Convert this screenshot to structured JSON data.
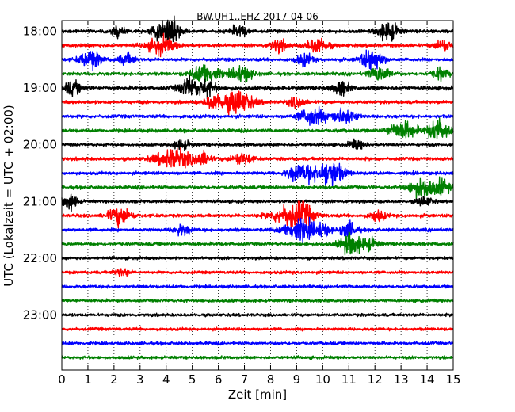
{
  "chart_data": {
    "type": "line",
    "subtype": "dayplot",
    "title": "BW.UH1..EHZ 2017-04-06",
    "xlabel": "Zeit  [min]",
    "ylabel": "UTC (Lokalzeit = UTC + 02:00)",
    "xlim": [
      0,
      15
    ],
    "x_ticks": [
      0,
      1,
      2,
      3,
      4,
      5,
      6,
      7,
      8,
      9,
      10,
      11,
      12,
      13,
      14,
      15
    ],
    "x_tick_labels": [
      "0",
      "1",
      "2",
      "3",
      "4",
      "5",
      "6",
      "7",
      "8",
      "9",
      "10",
      "11",
      "12",
      "13",
      "14",
      "15"
    ],
    "y_tick_labels": [
      "18:00",
      "19:00",
      "20:00",
      "21:00",
      "22:00",
      "23:00"
    ],
    "rows_per_hour": 4,
    "grid": "vertical dotted",
    "trace_colors": [
      "#000000",
      "#ff0000",
      "#0000ff",
      "#008000"
    ],
    "rows": [
      {
        "start": "18:00",
        "color_index": 0,
        "noise": 0.55,
        "events": [
          [
            3.9,
            0.4,
            3.5
          ],
          [
            4.3,
            0.3,
            2.5
          ],
          [
            12.5,
            0.4,
            3.2
          ],
          [
            6.8,
            0.3,
            2.0
          ],
          [
            2.1,
            0.3,
            1.6
          ]
        ]
      },
      {
        "start": "18:15",
        "color_index": 1,
        "noise": 0.55,
        "events": [
          [
            3.8,
            0.5,
            2.8
          ],
          [
            8.3,
            0.3,
            2.0
          ],
          [
            9.8,
            0.4,
            2.6
          ],
          [
            14.6,
            0.3,
            1.8
          ]
        ]
      },
      {
        "start": "18:30",
        "color_index": 2,
        "noise": 0.55,
        "events": [
          [
            1.1,
            0.4,
            3.0
          ],
          [
            11.9,
            0.4,
            3.8
          ],
          [
            9.3,
            0.3,
            2.0
          ],
          [
            2.5,
            0.3,
            1.8
          ]
        ]
      },
      {
        "start": "18:45",
        "color_index": 3,
        "noise": 0.55,
        "events": [
          [
            5.5,
            0.5,
            3.4
          ],
          [
            6.9,
            0.4,
            2.6
          ],
          [
            12.2,
            0.4,
            2.4
          ],
          [
            14.5,
            0.3,
            2.0
          ]
        ]
      },
      {
        "start": "19:00",
        "color_index": 0,
        "noise": 0.6,
        "events": [
          [
            4.9,
            0.4,
            3.2
          ],
          [
            5.6,
            0.3,
            2.6
          ],
          [
            0.4,
            0.3,
            2.2
          ],
          [
            10.7,
            0.3,
            2.4
          ]
        ]
      },
      {
        "start": "19:15",
        "color_index": 1,
        "noise": 0.55,
        "events": [
          [
            6.7,
            0.6,
            3.8
          ],
          [
            5.8,
            0.3,
            2.2
          ],
          [
            9.0,
            0.3,
            1.8
          ]
        ]
      },
      {
        "start": "19:30",
        "color_index": 2,
        "noise": 0.55,
        "events": [
          [
            9.6,
            0.5,
            3.0
          ],
          [
            11.0,
            0.3,
            2.0
          ],
          [
            10.6,
            0.3,
            1.8
          ]
        ]
      },
      {
        "start": "19:45",
        "color_index": 3,
        "noise": 0.55,
        "events": [
          [
            14.4,
            0.4,
            3.6
          ],
          [
            13.2,
            0.4,
            2.8
          ],
          [
            12.7,
            0.3,
            1.6
          ]
        ]
      },
      {
        "start": "20:00",
        "color_index": 0,
        "noise": 0.5,
        "events": [
          [
            4.6,
            0.3,
            1.6
          ],
          [
            11.3,
            0.3,
            1.5
          ]
        ]
      },
      {
        "start": "20:15",
        "color_index": 1,
        "noise": 0.55,
        "events": [
          [
            4.3,
            0.7,
            3.2
          ],
          [
            5.4,
            0.3,
            2.2
          ],
          [
            6.9,
            0.4,
            2.0
          ]
        ]
      },
      {
        "start": "20:30",
        "color_index": 2,
        "noise": 0.55,
        "events": [
          [
            10.3,
            0.5,
            4.2
          ],
          [
            9.4,
            0.4,
            2.4
          ],
          [
            8.9,
            0.3,
            2.0
          ]
        ]
      },
      {
        "start": "20:45",
        "color_index": 3,
        "noise": 0.55,
        "events": [
          [
            13.8,
            0.5,
            3.2
          ],
          [
            14.6,
            0.3,
            2.2
          ]
        ]
      },
      {
        "start": "21:00",
        "color_index": 0,
        "noise": 0.5,
        "events": [
          [
            0.3,
            0.3,
            2.6
          ],
          [
            13.9,
            0.3,
            1.6
          ]
        ]
      },
      {
        "start": "21:15",
        "color_index": 1,
        "noise": 0.55,
        "events": [
          [
            2.2,
            0.4,
            3.0
          ],
          [
            8.8,
            0.7,
            3.6
          ],
          [
            9.3,
            0.3,
            2.2
          ],
          [
            12.1,
            0.3,
            1.8
          ]
        ]
      },
      {
        "start": "21:30",
        "color_index": 2,
        "noise": 0.55,
        "events": [
          [
            9.1,
            0.6,
            3.6
          ],
          [
            11.0,
            0.3,
            2.6
          ],
          [
            4.6,
            0.3,
            1.8
          ],
          [
            10.0,
            0.3,
            1.8
          ]
        ]
      },
      {
        "start": "21:45",
        "color_index": 3,
        "noise": 0.55,
        "events": [
          [
            11.1,
            0.4,
            3.8
          ],
          [
            11.8,
            0.3,
            1.8
          ]
        ]
      },
      {
        "start": "22:00",
        "color_index": 0,
        "noise": 0.5,
        "events": []
      },
      {
        "start": "22:15",
        "color_index": 1,
        "noise": 0.5,
        "events": [
          [
            2.3,
            0.3,
            1.2
          ]
        ]
      },
      {
        "start": "22:30",
        "color_index": 2,
        "noise": 0.5,
        "events": []
      },
      {
        "start": "22:45",
        "color_index": 3,
        "noise": 0.5,
        "events": []
      },
      {
        "start": "23:00",
        "color_index": 0,
        "noise": 0.5,
        "events": []
      },
      {
        "start": "23:15",
        "color_index": 1,
        "noise": 0.5,
        "events": []
      },
      {
        "start": "23:30",
        "color_index": 2,
        "noise": 0.5,
        "events": []
      },
      {
        "start": "23:45",
        "color_index": 3,
        "noise": 0.5,
        "events": []
      }
    ]
  }
}
